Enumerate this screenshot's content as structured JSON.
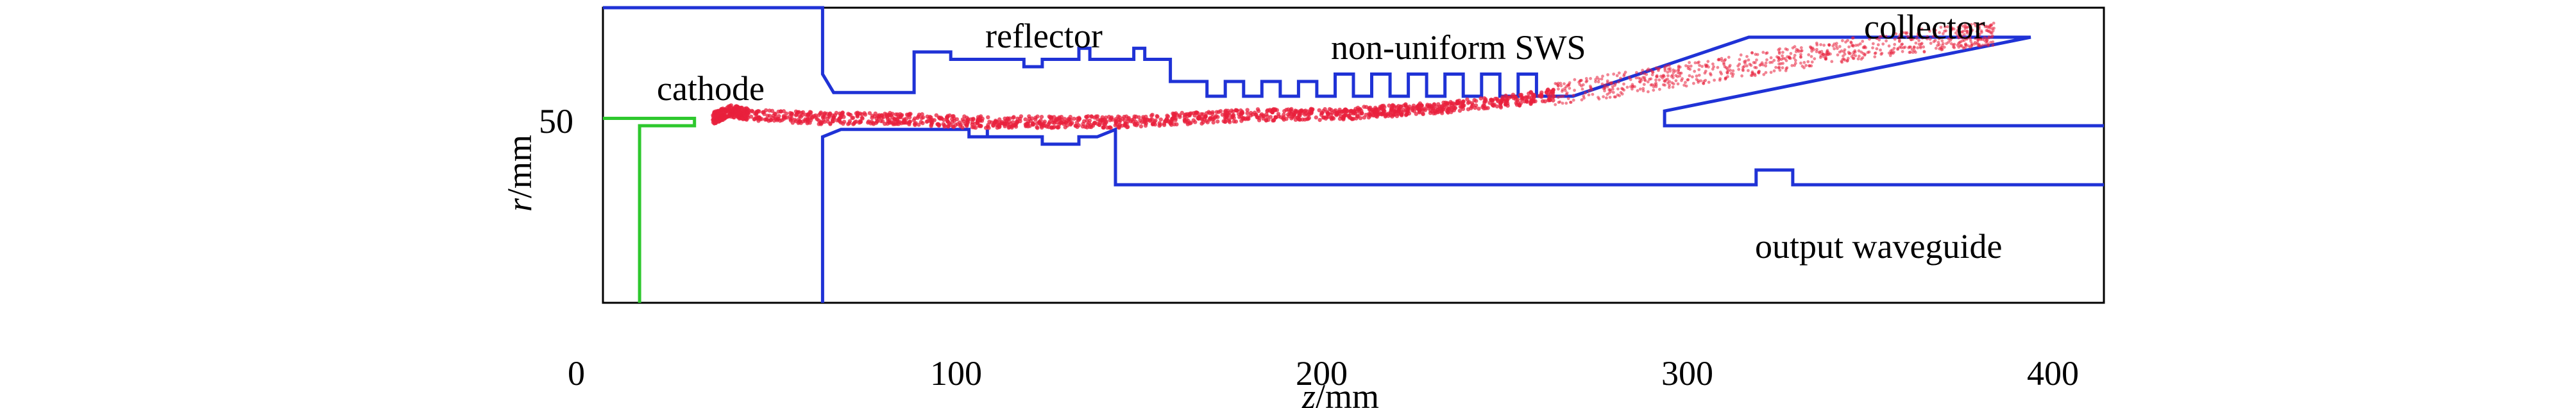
{
  "chart_data": {
    "type": "diagram",
    "xlabel_var": "z",
    "xlabel_unit": "/mm",
    "ylabel_var": "r",
    "ylabel_unit": "/mm",
    "xlim": [
      0,
      410
    ],
    "ylim": [
      0,
      80
    ],
    "x_ticks": [
      0,
      100,
      200,
      300,
      400
    ],
    "y_ticks": [
      50
    ],
    "annotations": [
      {
        "id": "cathode",
        "text": "cathode"
      },
      {
        "id": "reflector",
        "text": "reflector"
      },
      {
        "id": "sws",
        "text": "non-uniform SWS"
      },
      {
        "id": "collector",
        "text": "collector"
      },
      {
        "id": "output",
        "text": "output waveguide"
      }
    ],
    "colors": {
      "structure": "#1f32d6",
      "cathode": "#2ec82e",
      "beam": "#e8203c",
      "frame": "#000000"
    },
    "upper_wall": [
      [
        0,
        80
      ],
      [
        60,
        80
      ],
      [
        60,
        62
      ],
      [
        63,
        57
      ],
      [
        85,
        57
      ],
      [
        85,
        68
      ],
      [
        95,
        68
      ],
      [
        95,
        66
      ],
      [
        115,
        66
      ],
      [
        115,
        64
      ],
      [
        120,
        64
      ],
      [
        120,
        66
      ],
      [
        130,
        66
      ],
      [
        130,
        69
      ],
      [
        133,
        69
      ],
      [
        133,
        66
      ],
      [
        145,
        66
      ],
      [
        145,
        69
      ],
      [
        148,
        69
      ],
      [
        148,
        66
      ],
      [
        155,
        66
      ],
      [
        155,
        60
      ],
      [
        160,
        60
      ],
      [
        165,
        60
      ],
      [
        165,
        56
      ],
      [
        170,
        56
      ],
      [
        170,
        60
      ],
      [
        175,
        60
      ],
      [
        175,
        56
      ],
      [
        180,
        56
      ],
      [
        180,
        60
      ],
      [
        185,
        60
      ],
      [
        185,
        56
      ],
      [
        190,
        56
      ],
      [
        190,
        60
      ],
      [
        195,
        60
      ],
      [
        195,
        56
      ],
      [
        200,
        56
      ],
      [
        200,
        62
      ],
      [
        205,
        62
      ],
      [
        205,
        56
      ],
      [
        210,
        56
      ],
      [
        210,
        62
      ],
      [
        215,
        62
      ],
      [
        215,
        56
      ],
      [
        220,
        56
      ],
      [
        220,
        62
      ],
      [
        225,
        62
      ],
      [
        225,
        56
      ],
      [
        230,
        56
      ],
      [
        230,
        62
      ],
      [
        235,
        62
      ],
      [
        235,
        56
      ],
      [
        240,
        56
      ],
      [
        240,
        62
      ],
      [
        245,
        62
      ],
      [
        245,
        56
      ],
      [
        250,
        56
      ],
      [
        250,
        62
      ],
      [
        255,
        62
      ],
      [
        255,
        56
      ],
      [
        265,
        56
      ],
      [
        313,
        72
      ],
      [
        390,
        72
      ],
      [
        290,
        52
      ],
      [
        290,
        48
      ],
      [
        410,
        48
      ]
    ],
    "lower_wall": [
      [
        0,
        0
      ],
      [
        0,
        80
      ]
    ],
    "inner_wall": [
      [
        60,
        0
      ],
      [
        60,
        45
      ],
      [
        65,
        47
      ],
      [
        100,
        47
      ],
      [
        100,
        45
      ],
      [
        105,
        45
      ],
      [
        105,
        47
      ],
      [
        105,
        45
      ],
      [
        120,
        45
      ],
      [
        120,
        43
      ],
      [
        130,
        43
      ],
      [
        130,
        45
      ],
      [
        135,
        45
      ],
      [
        140,
        47
      ],
      [
        140,
        32
      ],
      [
        315,
        32
      ],
      [
        315,
        36
      ],
      [
        325,
        36
      ],
      [
        325,
        32
      ],
      [
        410,
        32
      ]
    ],
    "cathode_outline": [
      [
        0,
        50
      ],
      [
        25,
        50
      ],
      [
        25,
        48
      ],
      [
        10,
        48
      ],
      [
        10,
        0
      ]
    ],
    "beam_envelope": [
      [
        30,
        50
      ],
      [
        35,
        52
      ],
      [
        40,
        51
      ],
      [
        60,
        50
      ],
      [
        80,
        50
      ],
      [
        100,
        49
      ],
      [
        120,
        49
      ],
      [
        140,
        49
      ],
      [
        160,
        50
      ],
      [
        180,
        51
      ],
      [
        200,
        51
      ],
      [
        215,
        52
      ],
      [
        230,
        53
      ],
      [
        250,
        55
      ],
      [
        270,
        58
      ],
      [
        290,
        61
      ],
      [
        310,
        64
      ],
      [
        330,
        67
      ],
      [
        350,
        70
      ],
      [
        370,
        72
      ],
      [
        380,
        73
      ]
    ]
  }
}
